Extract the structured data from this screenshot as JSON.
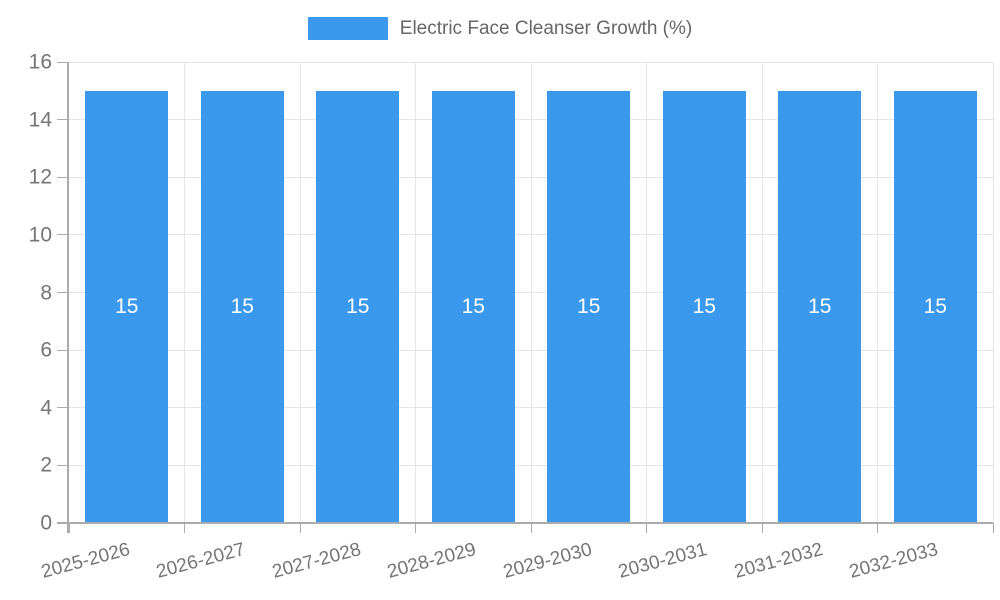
{
  "chart_data": {
    "type": "bar",
    "title": "Electric Face Cleanser Growth (%)",
    "categories": [
      "2025-2026",
      "2026-2027",
      "2027-2028",
      "2028-2029",
      "2029-2030",
      "2030-2031",
      "2031-2032",
      "2032-2033"
    ],
    "series": [
      {
        "name": "Electric Face Cleanser Growth (%)",
        "values": [
          15,
          15,
          15,
          15,
          15,
          15,
          15,
          15
        ]
      }
    ],
    "values": [
      15,
      15,
      15,
      15,
      15,
      15,
      15,
      15
    ],
    "bar_value_labels": [
      "15",
      "15",
      "15",
      "15",
      "15",
      "15",
      "15",
      "15"
    ],
    "xlabel": "",
    "ylabel": "",
    "ylim": [
      0,
      16
    ],
    "ytick_step": 2,
    "ytick_labels": [
      "0",
      "2",
      "4",
      "6",
      "8",
      "10",
      "12",
      "14",
      "16"
    ],
    "grid": true,
    "legend_position": "top",
    "x_label_rotation_deg": -15,
    "colors": {
      "bar": "#3A99EC",
      "grid_line": "#e5e5e5",
      "axis_line": "#ababab",
      "tick_label": "#757575",
      "legend_text": "#666666",
      "bar_label": "#ffffff",
      "background": "#ffffff"
    }
  }
}
